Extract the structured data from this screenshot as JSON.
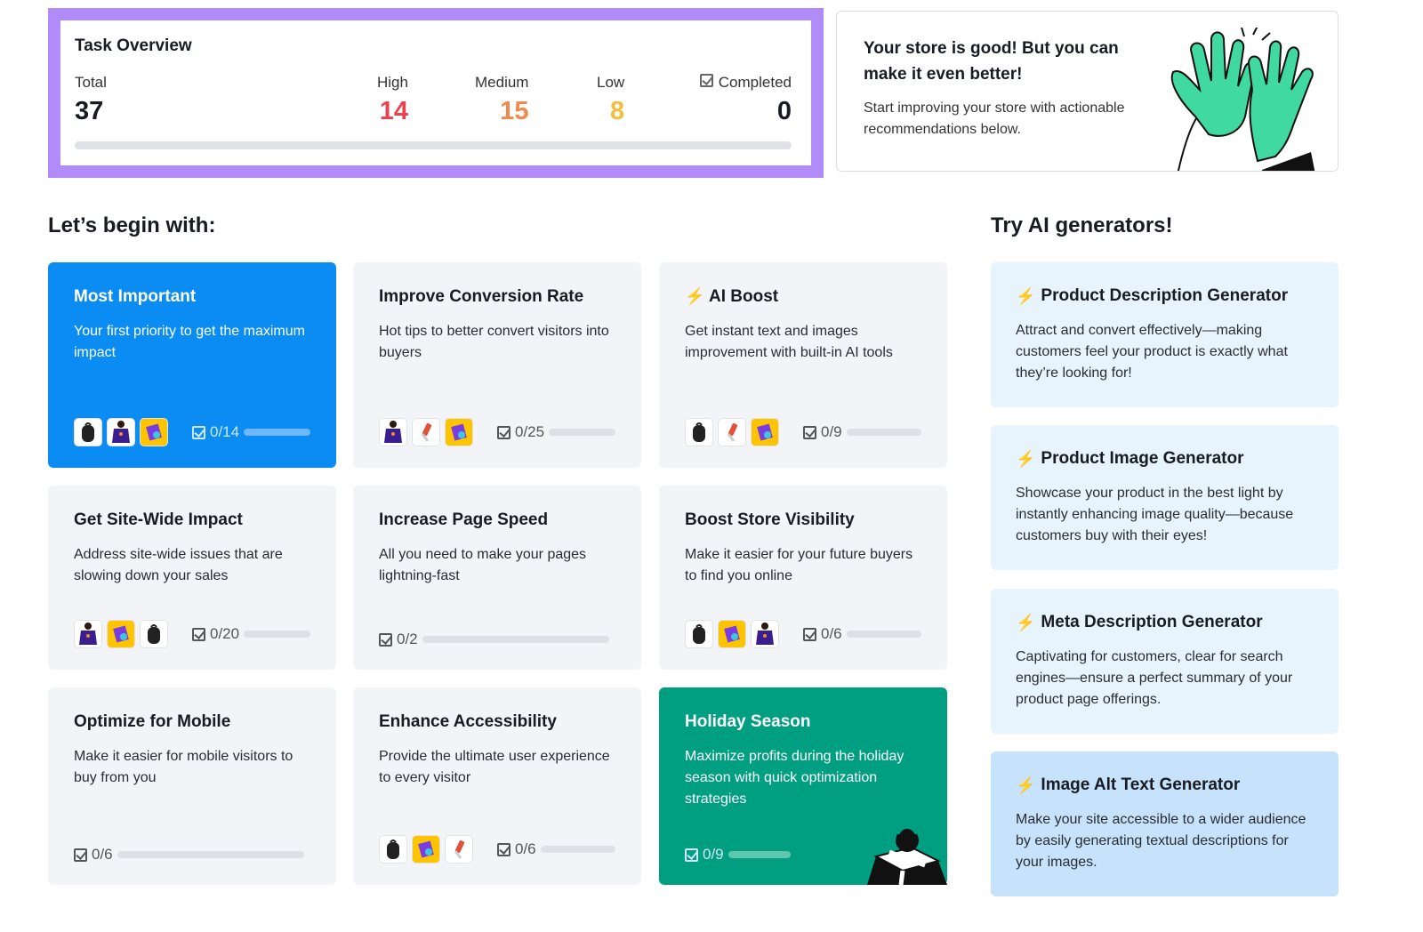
{
  "overview": {
    "title": "Task Overview",
    "total_label": "Total",
    "total": "37",
    "high_label": "High",
    "high": "14",
    "medium_label": "Medium",
    "medium": "15",
    "low_label": "Low",
    "low": "8",
    "completed_label": "Completed",
    "completed": "0",
    "completed_fraction": 0,
    "colors": {
      "high": "#e8434f",
      "medium": "#f2884b",
      "low": "#f2be3c",
      "frame": "#b18bf7"
    }
  },
  "promo": {
    "title": "Your store is good! But you can make it even better!",
    "text": "Start improving your store with actionable recommendations below."
  },
  "begin": {
    "title": "Let’s begin with:",
    "cards": [
      {
        "title": "Most Important",
        "desc": "Your first priority to get the maximum impact",
        "progress": "0/14",
        "thumbs": [
          "backpack",
          "sweater",
          "cards"
        ],
        "style": "blue"
      },
      {
        "title": "Improve Conversion Rate",
        "desc": "Hot tips to better convert visitors into buyers",
        "progress": "0/25",
        "thumbs": [
          "sweater",
          "bottle",
          "cards"
        ]
      },
      {
        "title": "AI Boost",
        "desc": "Get instant text and images improvement with built-in AI tools",
        "progress": "0/9",
        "thumbs": [
          "backpack",
          "bottle",
          "cards"
        ],
        "bolt": true
      },
      {
        "title": "Get Site-Wide Impact",
        "desc": "Address site-wide issues that are slowing down your sales",
        "progress": "0/20",
        "thumbs": [
          "sweater",
          "cards",
          "backpack"
        ]
      },
      {
        "title": "Increase Page Speed",
        "desc": "All you need to make your pages lightning-fast",
        "progress": "0/2",
        "thumbs": []
      },
      {
        "title": "Boost Store Visibility",
        "desc": "Make it easier for your future buyers to find you online",
        "progress": "0/6",
        "thumbs": [
          "backpack",
          "cards",
          "sweater"
        ]
      },
      {
        "title": "Optimize for Mobile",
        "desc": "Make it easier for mobile visitors to buy from you",
        "progress": "0/6",
        "thumbs": []
      },
      {
        "title": "Enhance Accessibility",
        "desc": "Provide the ultimate user experience to every visitor",
        "progress": "0/6",
        "thumbs": [
          "backpack",
          "cards",
          "bottle"
        ]
      },
      {
        "title": "Holiday Season",
        "desc": "Maximize profits during the holiday season with quick optimization strategies",
        "progress": "0/9",
        "thumbs": [],
        "style": "green"
      }
    ]
  },
  "ai": {
    "title": "Try AI generators!",
    "items": [
      {
        "title": "Product Description Generator",
        "desc": "Attract and convert effectively—making customers feel your product is exactly what they’re looking for!"
      },
      {
        "title": "Product Image Generator",
        "desc": "Showcase your product in the best light by instantly enhancing image quality—because customers buy with their eyes!"
      },
      {
        "title": "Meta Description Generator",
        "desc": "Captivating for customers, clear for search engines—ensure a perfect summary of your product page offerings."
      },
      {
        "title": "Image Alt Text Generator",
        "desc": "Make your site accessible to a wider audience by easily generating textual descriptions for your images."
      }
    ]
  }
}
